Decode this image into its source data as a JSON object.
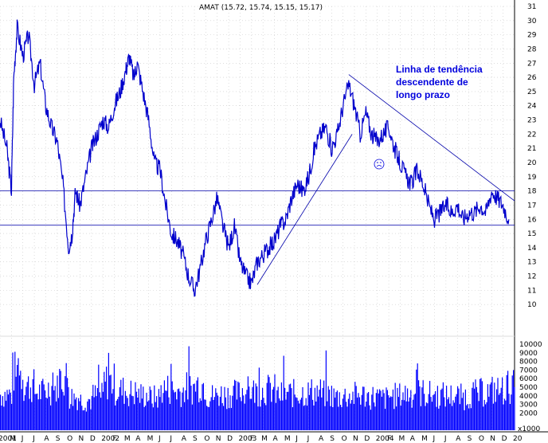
{
  "chart_data": {
    "type": "line",
    "title": "AMAT (15.72, 15.74, 15.15, 15.17)",
    "annotation_lines": [
      "Linha de tendência",
      "descendente de",
      "longo prazo"
    ],
    "price_axis": {
      "ylim": [
        9,
        31
      ],
      "ticks": [
        10,
        11,
        12,
        13,
        14,
        15,
        16,
        17,
        18,
        19,
        20,
        21,
        22,
        23,
        24,
        25,
        26,
        27,
        28,
        29,
        30,
        31
      ]
    },
    "volume_axis": {
      "ylim": [
        0,
        10000
      ],
      "ticks": [
        2000,
        3000,
        4000,
        5000,
        6000,
        7000,
        8000,
        9000,
        10000
      ],
      "unit_label": "x1000"
    },
    "x_axis": {
      "labels": [
        "2001",
        "M",
        "J",
        "J",
        "A",
        "S",
        "O",
        "N",
        "D",
        "2002",
        "F",
        "M",
        "A",
        "M",
        "J",
        "J",
        "A",
        "S",
        "O",
        "N",
        "D",
        "2003",
        "F",
        "M",
        "A",
        "M",
        "J",
        "J",
        "A",
        "S",
        "O",
        "N",
        "D",
        "2004",
        "F",
        "M",
        "A",
        "M",
        "J",
        "J",
        "A",
        "S",
        "O",
        "N",
        "D",
        "20"
      ],
      "range_months": [
        0,
        45
      ]
    },
    "series": [
      {
        "kind": "price",
        "points": [
          [
            0,
            23
          ],
          [
            0.6,
            21
          ],
          [
            1,
            18
          ],
          [
            1.2,
            26
          ],
          [
            1.5,
            29.5
          ],
          [
            2,
            27.5
          ],
          [
            2.5,
            29
          ],
          [
            3,
            25.5
          ],
          [
            3.5,
            27
          ],
          [
            4,
            24
          ],
          [
            4.5,
            22.5
          ],
          [
            5,
            21.5
          ],
          [
            5.5,
            18.5
          ],
          [
            6,
            14
          ],
          [
            6.3,
            15
          ],
          [
            6.6,
            18
          ],
          [
            7,
            17
          ],
          [
            7.5,
            19
          ],
          [
            8,
            21
          ],
          [
            8.5,
            22
          ],
          [
            9,
            23
          ],
          [
            9.5,
            22.5
          ],
          [
            10,
            24
          ],
          [
            10.5,
            25
          ],
          [
            11,
            26.5
          ],
          [
            11.3,
            27.5
          ],
          [
            11.7,
            26
          ],
          [
            12,
            27
          ],
          [
            12.5,
            25
          ],
          [
            13,
            23
          ],
          [
            13.5,
            20
          ],
          [
            14,
            19.5
          ],
          [
            14.5,
            17
          ],
          [
            15,
            15
          ],
          [
            15.5,
            14.5
          ],
          [
            16,
            13.5
          ],
          [
            16.5,
            12
          ],
          [
            17,
            11
          ],
          [
            17.5,
            12.5
          ],
          [
            18,
            14.5
          ],
          [
            18.5,
            16
          ],
          [
            19,
            17.5
          ],
          [
            19.5,
            15.5
          ],
          [
            20,
            14
          ],
          [
            20.5,
            15.5
          ],
          [
            21,
            13
          ],
          [
            21.5,
            12
          ],
          [
            22,
            11.5
          ],
          [
            22.5,
            13
          ],
          [
            23,
            13.5
          ],
          [
            23.5,
            14
          ],
          [
            24,
            14.5
          ],
          [
            24.5,
            15.5
          ],
          [
            25,
            16
          ],
          [
            25.5,
            17.5
          ],
          [
            26,
            18.5
          ],
          [
            26.5,
            18
          ],
          [
            27,
            19
          ],
          [
            27.5,
            21
          ],
          [
            28,
            22
          ],
          [
            28.5,
            22.5
          ],
          [
            29,
            21
          ],
          [
            29.5,
            22
          ],
          [
            30,
            24
          ],
          [
            30.5,
            25.5
          ],
          [
            31,
            24
          ],
          [
            31.5,
            22
          ],
          [
            32,
            23.5
          ],
          [
            32.5,
            22
          ],
          [
            33,
            21.5
          ],
          [
            33.5,
            22
          ],
          [
            34,
            22.5
          ],
          [
            34.5,
            21
          ],
          [
            35,
            20
          ],
          [
            35.5,
            19
          ],
          [
            36,
            18.5
          ],
          [
            36.5,
            19.5
          ],
          [
            37,
            18.5
          ],
          [
            37.5,
            17
          ],
          [
            38,
            16
          ],
          [
            38.5,
            16.5
          ],
          [
            39,
            17
          ],
          [
            39.5,
            16.5
          ],
          [
            40,
            17
          ],
          [
            40.5,
            16
          ],
          [
            41,
            16.5
          ],
          [
            41.5,
            16.5
          ],
          [
            42,
            17
          ],
          [
            42.5,
            16.5
          ],
          [
            43,
            18
          ],
          [
            43.5,
            17.5
          ],
          [
            44,
            17
          ],
          [
            44.5,
            16
          ]
        ]
      },
      {
        "kind": "volume",
        "values": [
          4500,
          7200,
          5600,
          4800,
          5200,
          6600,
          4200,
          3800,
          4300,
          6100,
          5000,
          4700,
          4400,
          4100,
          5200,
          4900,
          5300,
          5800,
          4300,
          4500,
          4600,
          5000,
          4900,
          5100,
          4400,
          4600,
          4700,
          4800,
          4500,
          4200,
          4300,
          4400,
          4200,
          4000,
          4300,
          4600,
          4700,
          4500,
          4400,
          4300,
          4200,
          4600,
          4800,
          5000,
          5500,
          6000
        ]
      }
    ],
    "reference_lines": [
      {
        "type": "horizontal",
        "y": 18.0
      },
      {
        "type": "horizontal",
        "y": 15.6
      },
      {
        "type": "trendline",
        "from": [
          22.5,
          11.4
        ],
        "to": [
          30.8,
          22.0
        ]
      },
      {
        "type": "trendline",
        "from": [
          30.5,
          26.2
        ],
        "to": [
          45,
          17.3
        ]
      }
    ],
    "colors": {
      "series": "#0000cc",
      "volume": "#0000ff",
      "reference": "#0000aa",
      "grid": "#c8c8c8",
      "annotation": "#0000dd"
    }
  }
}
